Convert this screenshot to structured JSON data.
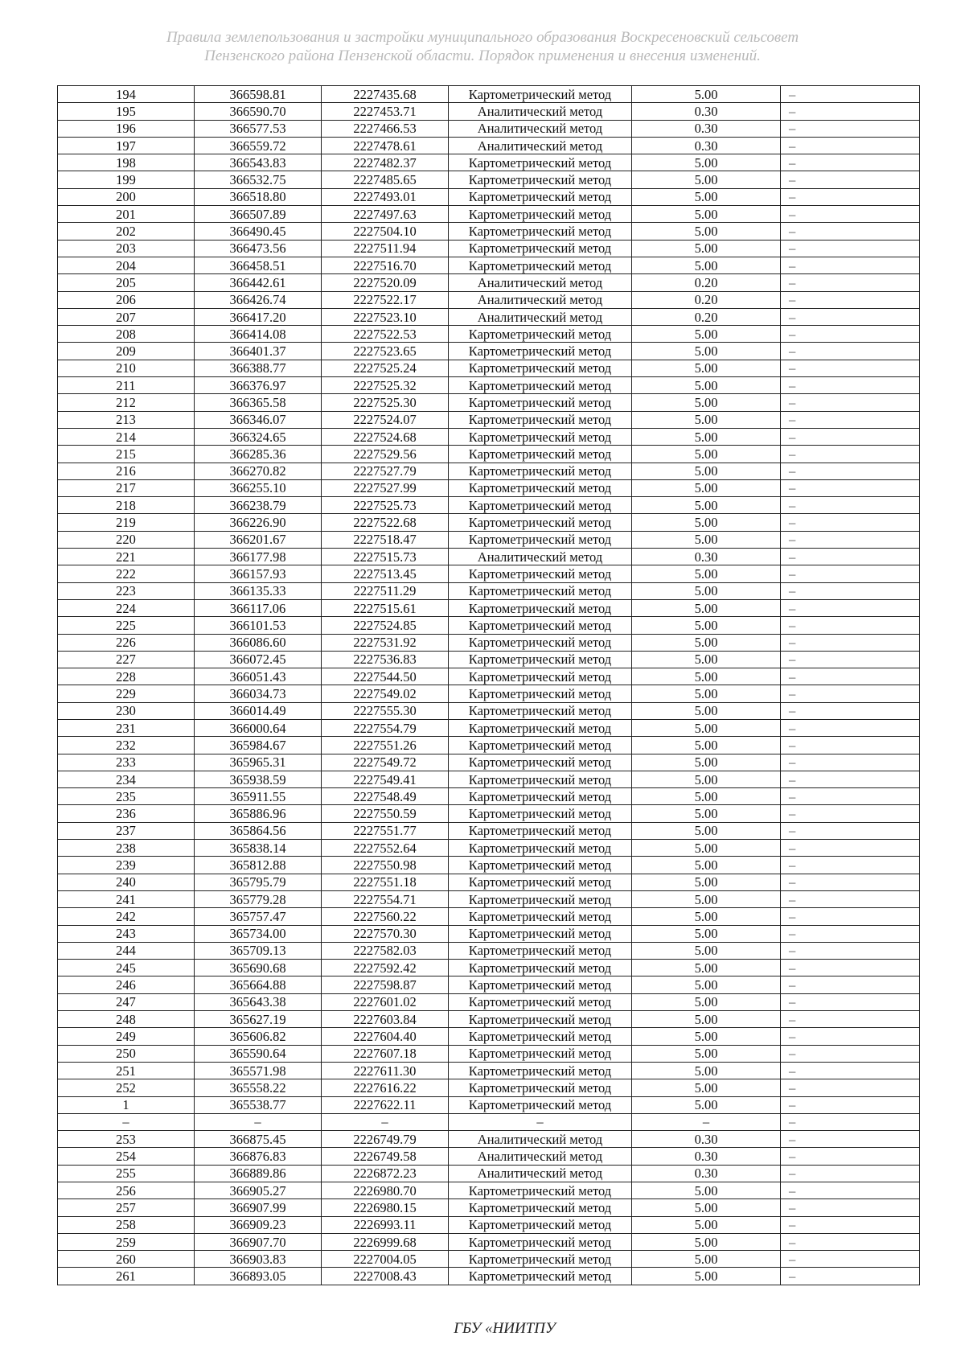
{
  "header": {
    "line1": "Правила землепользования и застройки муниципального образования Воскресеновский сельсовет",
    "line2": "Пензенского района Пензенской области. Порядок применения и внесения изменений."
  },
  "table": {
    "rows": [
      [
        "194",
        "366598.81",
        "2227435.68",
        "Картометрический метод",
        "5.00",
        "–"
      ],
      [
        "195",
        "366590.70",
        "2227453.71",
        "Аналитический метод",
        "0.30",
        "–"
      ],
      [
        "196",
        "366577.53",
        "2227466.53",
        "Аналитический метод",
        "0.30",
        "–"
      ],
      [
        "197",
        "366559.72",
        "2227478.61",
        "Аналитический метод",
        "0.30",
        "–"
      ],
      [
        "198",
        "366543.83",
        "2227482.37",
        "Картометрический метод",
        "5.00",
        "–"
      ],
      [
        "199",
        "366532.75",
        "2227485.65",
        "Картометрический метод",
        "5.00",
        "–"
      ],
      [
        "200",
        "366518.80",
        "2227493.01",
        "Картометрический метод",
        "5.00",
        "–"
      ],
      [
        "201",
        "366507.89",
        "2227497.63",
        "Картометрический метод",
        "5.00",
        "–"
      ],
      [
        "202",
        "366490.45",
        "2227504.10",
        "Картометрический метод",
        "5.00",
        "–"
      ],
      [
        "203",
        "366473.56",
        "2227511.94",
        "Картометрический метод",
        "5.00",
        "–"
      ],
      [
        "204",
        "366458.51",
        "2227516.70",
        "Картометрический метод",
        "5.00",
        "–"
      ],
      [
        "205",
        "366442.61",
        "2227520.09",
        "Аналитический метод",
        "0.20",
        "–"
      ],
      [
        "206",
        "366426.74",
        "2227522.17",
        "Аналитический метод",
        "0.20",
        "–"
      ],
      [
        "207",
        "366417.20",
        "2227523.10",
        "Аналитический метод",
        "0.20",
        "–"
      ],
      [
        "208",
        "366414.08",
        "2227522.53",
        "Картометрический метод",
        "5.00",
        "–"
      ],
      [
        "209",
        "366401.37",
        "2227523.65",
        "Картометрический метод",
        "5.00",
        "–"
      ],
      [
        "210",
        "366388.77",
        "2227525.24",
        "Картометрический метод",
        "5.00",
        "–"
      ],
      [
        "211",
        "366376.97",
        "2227525.32",
        "Картометрический метод",
        "5.00",
        "–"
      ],
      [
        "212",
        "366365.58",
        "2227525.30",
        "Картометрический метод",
        "5.00",
        "–"
      ],
      [
        "213",
        "366346.07",
        "2227524.07",
        "Картометрический метод",
        "5.00",
        "–"
      ],
      [
        "214",
        "366324.65",
        "2227524.68",
        "Картометрический метод",
        "5.00",
        "–"
      ],
      [
        "215",
        "366285.36",
        "2227529.56",
        "Картометрический метод",
        "5.00",
        "–"
      ],
      [
        "216",
        "366270.82",
        "2227527.79",
        "Картометрический метод",
        "5.00",
        "–"
      ],
      [
        "217",
        "366255.10",
        "2227527.99",
        "Картометрический метод",
        "5.00",
        "–"
      ],
      [
        "218",
        "366238.79",
        "2227525.73",
        "Картометрический метод",
        "5.00",
        "–"
      ],
      [
        "219",
        "366226.90",
        "2227522.68",
        "Картометрический метод",
        "5.00",
        "–"
      ],
      [
        "220",
        "366201.67",
        "2227518.47",
        "Картометрический метод",
        "5.00",
        "–"
      ],
      [
        "221",
        "366177.98",
        "2227515.73",
        "Аналитический метод",
        "0.30",
        "–"
      ],
      [
        "222",
        "366157.93",
        "2227513.45",
        "Картометрический метод",
        "5.00",
        "–"
      ],
      [
        "223",
        "366135.33",
        "2227511.29",
        "Картометрический метод",
        "5.00",
        "–"
      ],
      [
        "224",
        "366117.06",
        "2227515.61",
        "Картометрический метод",
        "5.00",
        "–"
      ],
      [
        "225",
        "366101.53",
        "2227524.85",
        "Картометрический метод",
        "5.00",
        "–"
      ],
      [
        "226",
        "366086.60",
        "2227531.92",
        "Картометрический метод",
        "5.00",
        "–"
      ],
      [
        "227",
        "366072.45",
        "2227536.83",
        "Картометрический метод",
        "5.00",
        "–"
      ],
      [
        "228",
        "366051.43",
        "2227544.50",
        "Картометрический метод",
        "5.00",
        "–"
      ],
      [
        "229",
        "366034.73",
        "2227549.02",
        "Картометрический метод",
        "5.00",
        "–"
      ],
      [
        "230",
        "366014.49",
        "2227555.30",
        "Картометрический метод",
        "5.00",
        "–"
      ],
      [
        "231",
        "366000.64",
        "2227554.79",
        "Картометрический метод",
        "5.00",
        "–"
      ],
      [
        "232",
        "365984.67",
        "2227551.26",
        "Картометрический метод",
        "5.00",
        "–"
      ],
      [
        "233",
        "365965.31",
        "2227549.72",
        "Картометрический метод",
        "5.00",
        "–"
      ],
      [
        "234",
        "365938.59",
        "2227549.41",
        "Картометрический метод",
        "5.00",
        "–"
      ],
      [
        "235",
        "365911.55",
        "2227548.49",
        "Картометрический метод",
        "5.00",
        "–"
      ],
      [
        "236",
        "365886.96",
        "2227550.59",
        "Картометрический метод",
        "5.00",
        "–"
      ],
      [
        "237",
        "365864.56",
        "2227551.77",
        "Картометрический метод",
        "5.00",
        "–"
      ],
      [
        "238",
        "365838.14",
        "2227552.64",
        "Картометрический метод",
        "5.00",
        "–"
      ],
      [
        "239",
        "365812.88",
        "2227550.98",
        "Картометрический метод",
        "5.00",
        "–"
      ],
      [
        "240",
        "365795.79",
        "2227551.18",
        "Картометрический метод",
        "5.00",
        "–"
      ],
      [
        "241",
        "365779.28",
        "2227554.71",
        "Картометрический метод",
        "5.00",
        "–"
      ],
      [
        "242",
        "365757.47",
        "2227560.22",
        "Картометрический метод",
        "5.00",
        "–"
      ],
      [
        "243",
        "365734.00",
        "2227570.30",
        "Картометрический метод",
        "5.00",
        "–"
      ],
      [
        "244",
        "365709.13",
        "2227582.03",
        "Картометрический метод",
        "5.00",
        "–"
      ],
      [
        "245",
        "365690.68",
        "2227592.42",
        "Картометрический метод",
        "5.00",
        "–"
      ],
      [
        "246",
        "365664.88",
        "2227598.87",
        "Картометрический метод",
        "5.00",
        "–"
      ],
      [
        "247",
        "365643.38",
        "2227601.02",
        "Картометрический метод",
        "5.00",
        "–"
      ],
      [
        "248",
        "365627.19",
        "2227603.84",
        "Картометрический метод",
        "5.00",
        "–"
      ],
      [
        "249",
        "365606.82",
        "2227604.40",
        "Картометрический метод",
        "5.00",
        "–"
      ],
      [
        "250",
        "365590.64",
        "2227607.18",
        "Картометрический метод",
        "5.00",
        "–"
      ],
      [
        "251",
        "365571.98",
        "2227611.30",
        "Картометрический метод",
        "5.00",
        "–"
      ],
      [
        "252",
        "365558.22",
        "2227616.22",
        "Картометрический метод",
        "5.00",
        "–"
      ],
      [
        "1",
        "365538.77",
        "2227622.11",
        "Картометрический метод",
        "5.00",
        "–"
      ],
      [
        "–",
        "–",
        "–",
        "–",
        "–",
        "–"
      ],
      [
        "253",
        "366875.45",
        "2226749.79",
        "Аналитический метод",
        "0.30",
        "–"
      ],
      [
        "254",
        "366876.83",
        "2226749.58",
        "Аналитический метод",
        "0.30",
        "–"
      ],
      [
        "255",
        "366889.86",
        "2226872.23",
        "Аналитический метод",
        "0.30",
        "–"
      ],
      [
        "256",
        "366905.27",
        "2226980.70",
        "Картометрический метод",
        "5.00",
        "–"
      ],
      [
        "257",
        "366907.99",
        "2226980.15",
        "Картометрический метод",
        "5.00",
        "–"
      ],
      [
        "258",
        "366909.23",
        "2226993.11",
        "Картометрический метод",
        "5.00",
        "–"
      ],
      [
        "259",
        "366907.70",
        "2226999.68",
        "Картометрический метод",
        "5.00",
        "–"
      ],
      [
        "260",
        "366903.83",
        "2227004.05",
        "Картометрический метод",
        "5.00",
        "–"
      ],
      [
        "261",
        "366893.05",
        "2227008.43",
        "Картометрический метод",
        "5.00",
        "–"
      ]
    ]
  },
  "footer": {
    "text": "ГБУ «НИИТПУ"
  }
}
